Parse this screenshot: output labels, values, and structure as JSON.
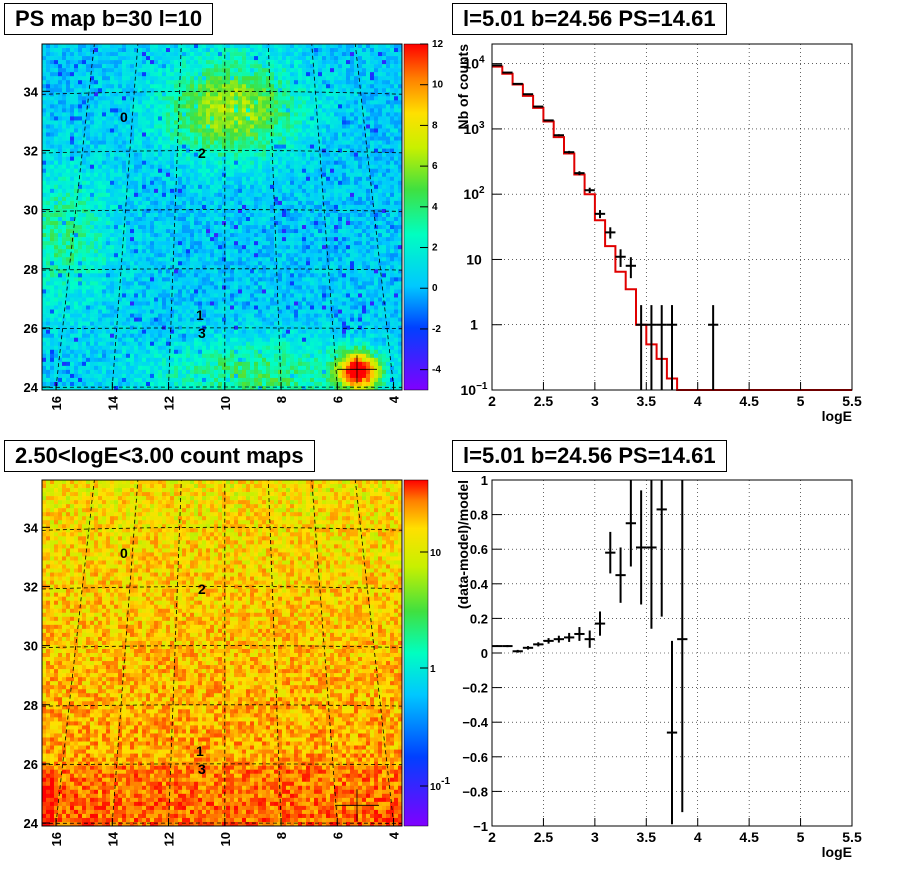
{
  "titles": {
    "ps_map": "PS map b=30 l=10",
    "spectrum": "l=5.01 b=24.56 PS=14.61",
    "count_map": "2.50<logE<3.00 count maps",
    "residual": "l=5.01 b=24.56 PS=14.61"
  },
  "chart_data": [
    {
      "type": "heatmap",
      "panel": "ps_map",
      "x_ticks": [
        "16",
        "14",
        "12",
        "10",
        "8",
        "6",
        "4"
      ],
      "y_ticks": [
        "24",
        "26",
        "28",
        "30",
        "32",
        "34"
      ],
      "colorbar_ticks": [
        "12",
        "10",
        "8",
        "6",
        "4",
        "2",
        "0",
        "-2",
        "-4"
      ],
      "colorbar_range": [
        -5,
        12
      ],
      "source_labels": [
        "0",
        "2",
        "1",
        "3"
      ],
      "hotspot": {
        "l": 5.3,
        "b": 24.6
      }
    },
    {
      "type": "line",
      "panel": "spectrum",
      "xlabel": "logE",
      "ylabel": "Nb of counts",
      "log_y": true,
      "xlim": [
        2,
        5.5
      ],
      "ylim": [
        0.1,
        20000
      ],
      "x_ticks": [
        "2",
        "2.5",
        "3",
        "3.5",
        "4",
        "4.5",
        "5",
        "5.5"
      ],
      "y_ticks": [
        {
          "label": "10",
          "sup": "4",
          "value": 10000
        },
        {
          "label": "10",
          "sup": "3",
          "value": 1000
        },
        {
          "label": "10",
          "sup": "2",
          "value": 100
        },
        {
          "label": "10",
          "sup": "",
          "value": 10
        },
        {
          "label": "1",
          "sup": "",
          "value": 1
        },
        {
          "label": "10",
          "sup": "−1",
          "value": 0.1
        }
      ],
      "model": [
        9000,
        7000,
        4800,
        3200,
        2100,
        1300,
        750,
        420,
        200,
        100,
        40,
        16,
        6.5,
        3.5,
        1,
        0.5,
        0.3,
        0.15,
        0.1,
        0.1,
        0.1,
        0.1,
        0.1,
        0.1,
        0.1,
        0.1,
        0.1,
        0.1,
        0.1,
        0.1,
        0.1,
        0.1,
        0.1,
        0.1,
        0.1
      ],
      "data": [
        {
          "x": 2.05,
          "y": 9400
        },
        {
          "x": 2.15,
          "y": 7300
        },
        {
          "x": 2.25,
          "y": 4900
        },
        {
          "x": 2.35,
          "y": 3400
        },
        {
          "x": 2.45,
          "y": 2200
        },
        {
          "x": 2.55,
          "y": 1350
        },
        {
          "x": 2.65,
          "y": 800
        },
        {
          "x": 2.75,
          "y": 440
        },
        {
          "x": 2.85,
          "y": 210
        },
        {
          "x": 2.95,
          "y": 115
        },
        {
          "x": 3.05,
          "y": 50
        },
        {
          "x": 3.15,
          "y": 26
        },
        {
          "x": 3.25,
          "y": 11
        },
        {
          "x": 3.35,
          "y": 8
        },
        {
          "x": 3.45,
          "y": 1
        },
        {
          "x": 3.55,
          "y": 1
        },
        {
          "x": 3.65,
          "y": 1
        },
        {
          "x": 3.75,
          "y": 1
        },
        {
          "x": 4.15,
          "y": 1
        }
      ]
    },
    {
      "type": "heatmap",
      "panel": "count_map",
      "x_ticks": [
        "16",
        "14",
        "12",
        "10",
        "8",
        "6",
        "4"
      ],
      "y_ticks": [
        "24",
        "26",
        "28",
        "30",
        "32",
        "34"
      ],
      "colorbar_ticks": [
        {
          "label": "10",
          "sup": ""
        },
        {
          "label": "1",
          "sup": ""
        },
        {
          "label": "10",
          "sup": "-1"
        }
      ],
      "source_labels": [
        "0",
        "2",
        "1",
        "3"
      ]
    },
    {
      "type": "scatter",
      "panel": "residual",
      "xlabel": "logE",
      "ylabel": "(data-model)/model",
      "xlim": [
        2,
        5.5
      ],
      "ylim": [
        -1,
        1
      ],
      "x_ticks": [
        "2",
        "2.5",
        "3",
        "3.5",
        "4",
        "4.5",
        "5",
        "5.5"
      ],
      "y_ticks": [
        "1",
        "0.8",
        "0.6",
        "0.4",
        "0.2",
        "0",
        "−0.2",
        "−0.4",
        "−0.6",
        "−0.8",
        "−1"
      ],
      "points": [
        {
          "x": 2.05,
          "y": 0.04,
          "err": 0.005
        },
        {
          "x": 2.15,
          "y": 0.04,
          "err": 0.006
        },
        {
          "x": 2.25,
          "y": 0.01,
          "err": 0.008
        },
        {
          "x": 2.35,
          "y": 0.03,
          "err": 0.01
        },
        {
          "x": 2.45,
          "y": 0.05,
          "err": 0.012
        },
        {
          "x": 2.55,
          "y": 0.07,
          "err": 0.016
        },
        {
          "x": 2.65,
          "y": 0.08,
          "err": 0.02
        },
        {
          "x": 2.75,
          "y": 0.09,
          "err": 0.026
        },
        {
          "x": 2.85,
          "y": 0.11,
          "err": 0.04
        },
        {
          "x": 2.95,
          "y": 0.08,
          "err": 0.05
        },
        {
          "x": 3.05,
          "y": 0.17,
          "err": 0.07
        },
        {
          "x": 3.15,
          "y": 0.58,
          "err": 0.12
        },
        {
          "x": 3.25,
          "y": 0.45,
          "err": 0.16
        },
        {
          "x": 3.35,
          "y": 0.75,
          "err": 0.25
        },
        {
          "x": 3.45,
          "y": 0.61,
          "err": 0.33
        },
        {
          "x": 3.55,
          "y": 0.61,
          "err": 0.47
        },
        {
          "x": 3.65,
          "y": 0.83,
          "err": 0.62
        },
        {
          "x": 3.75,
          "y": -0.46,
          "err": 0.53
        },
        {
          "x": 3.85,
          "y": 0.08,
          "err": 1.0
        }
      ]
    }
  ]
}
